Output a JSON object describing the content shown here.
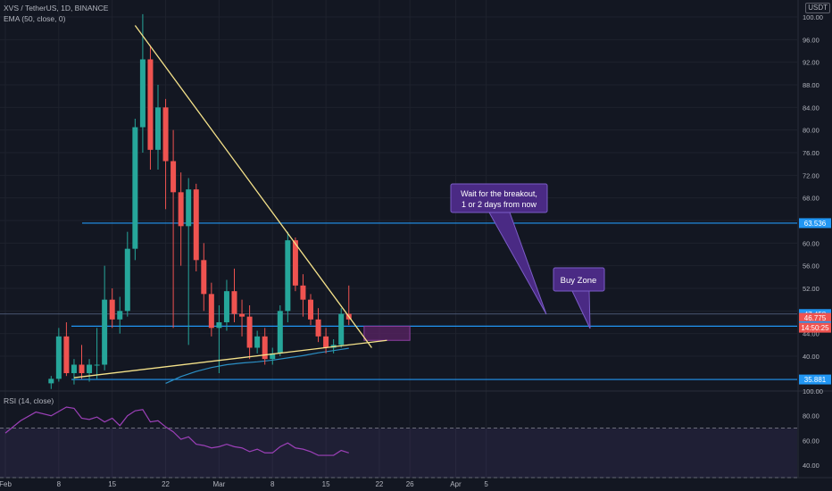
{
  "header": {
    "symbol_line": "XVS / TetherUS, 1D, BINANCE",
    "ema_label": "EMA (50, close, 0)",
    "unit": "USDT",
    "rsi_label": "RSI (14, close)"
  },
  "colors": {
    "background": "#131722",
    "grid": "#1e222d",
    "up": "#26a69a",
    "down": "#ef5350",
    "level_line": "#2196f3",
    "trend_line": "#f5e28a",
    "ema": "#2b8fc5",
    "rsi_line": "#9c40b8",
    "annotation_fill": "#4a2a84",
    "buy_zone_fill": "#5b2466"
  },
  "annotations": {
    "breakout_line1": "Wait for the breakout,",
    "breakout_line2": "1 or 2 days from now",
    "buy_zone": "Buy Zone"
  },
  "chart_data": [
    {
      "type": "candlestick",
      "title": "XVS / TetherUS, 1D, BINANCE",
      "x_axis": {
        "type": "date",
        "ticks": [
          {
            "date": "2021-02-01",
            "label": "Feb"
          },
          {
            "date": "2021-02-08",
            "label": "8"
          },
          {
            "date": "2021-02-15",
            "label": "15"
          },
          {
            "date": "2021-02-22",
            "label": "22"
          },
          {
            "date": "2021-03-01",
            "label": "Mar"
          },
          {
            "date": "2021-03-08",
            "label": "8"
          },
          {
            "date": "2021-03-15",
            "label": "15"
          },
          {
            "date": "2021-03-22",
            "label": "22"
          },
          {
            "date": "2021-03-26",
            "label": "26"
          },
          {
            "date": "2021-04-01",
            "label": "Apr"
          },
          {
            "date": "2021-04-05",
            "label": "5"
          }
        ]
      },
      "y_axis": {
        "range": [
          34,
          100
        ],
        "ticks": [
          40,
          44,
          48,
          52,
          56,
          60,
          64,
          68,
          72,
          76,
          80,
          84,
          88,
          92,
          96,
          100
        ],
        "tick_labels": [
          "40.00",
          "44.00",
          "48.00",
          "52.00",
          "56.00",
          "60.00",
          "64.00",
          "68.00",
          "72.00",
          "76.00",
          "80.00",
          "84.00",
          "88.00",
          "92.00",
          "96.00",
          "100.00"
        ],
        "price_labels": [
          {
            "value": 63.536,
            "label": "63.536",
            "color": "#2196f3"
          },
          {
            "value": 47.458,
            "label": "47.458",
            "color": "#2196f3"
          },
          {
            "value": 46.775,
            "label": "46.775",
            "color": "#ef5350"
          },
          {
            "value": 45.313,
            "label": "45.313",
            "color": "#2196f3"
          },
          {
            "value": 35.881,
            "label": "35.881",
            "color": "#2196f3"
          }
        ],
        "countdown": "14:50:25"
      },
      "candles": [
        {
          "date": "2021-02-07",
          "o": 35.2,
          "h": 36.5,
          "l": 34.2,
          "c": 36.0
        },
        {
          "date": "2021-02-08",
          "o": 36.0,
          "h": 45.0,
          "l": 35.5,
          "c": 43.5
        },
        {
          "date": "2021-02-09",
          "o": 43.5,
          "h": 46.0,
          "l": 36.5,
          "c": 37.0
        },
        {
          "date": "2021-02-10",
          "o": 37.0,
          "h": 39.5,
          "l": 35.0,
          "c": 38.5
        },
        {
          "date": "2021-02-11",
          "o": 38.5,
          "h": 42.0,
          "l": 36.0,
          "c": 37.0
        },
        {
          "date": "2021-02-12",
          "o": 37.0,
          "h": 39.5,
          "l": 35.5,
          "c": 38.5
        },
        {
          "date": "2021-02-13",
          "o": 38.5,
          "h": 45.0,
          "l": 36.0,
          "c": 38.5
        },
        {
          "date": "2021-02-14",
          "o": 38.5,
          "h": 56.0,
          "l": 37.5,
          "c": 50.0
        },
        {
          "date": "2021-02-15",
          "o": 50.0,
          "h": 52.0,
          "l": 45.0,
          "c": 46.5
        },
        {
          "date": "2021-02-16",
          "o": 46.5,
          "h": 50.5,
          "l": 44.0,
          "c": 48.0
        },
        {
          "date": "2021-02-17",
          "o": 48.0,
          "h": 62.0,
          "l": 47.0,
          "c": 59.0
        },
        {
          "date": "2021-02-18",
          "o": 59.0,
          "h": 82.0,
          "l": 57.0,
          "c": 80.5
        },
        {
          "date": "2021-02-19",
          "o": 80.5,
          "h": 100.5,
          "l": 76.0,
          "c": 92.5
        },
        {
          "date": "2021-02-20",
          "o": 92.5,
          "h": 95.0,
          "l": 73.0,
          "c": 76.5
        },
        {
          "date": "2021-02-21",
          "o": 76.5,
          "h": 88.0,
          "l": 73.0,
          "c": 84.0
        },
        {
          "date": "2021-02-22",
          "o": 84.0,
          "h": 85.5,
          "l": 66.0,
          "c": 74.5
        },
        {
          "date": "2021-02-23",
          "o": 74.5,
          "h": 80.0,
          "l": 45.0,
          "c": 69.0
        },
        {
          "date": "2021-02-24",
          "o": 69.0,
          "h": 72.5,
          "l": 56.0,
          "c": 63.0
        },
        {
          "date": "2021-02-25",
          "o": 63.0,
          "h": 71.5,
          "l": 42.0,
          "c": 69.5
        },
        {
          "date": "2021-02-26",
          "o": 69.5,
          "h": 70.5,
          "l": 55.0,
          "c": 57.0
        },
        {
          "date": "2021-02-27",
          "o": 57.0,
          "h": 60.0,
          "l": 48.0,
          "c": 51.0
        },
        {
          "date": "2021-02-28",
          "o": 51.0,
          "h": 53.0,
          "l": 43.5,
          "c": 45.0
        },
        {
          "date": "2021-03-01",
          "o": 45.0,
          "h": 49.0,
          "l": 37.0,
          "c": 46.0
        },
        {
          "date": "2021-03-02",
          "o": 46.0,
          "h": 53.5,
          "l": 44.5,
          "c": 51.5
        },
        {
          "date": "2021-03-03",
          "o": 51.5,
          "h": 55.5,
          "l": 46.0,
          "c": 47.5
        },
        {
          "date": "2021-03-04",
          "o": 47.5,
          "h": 50.0,
          "l": 43.5,
          "c": 47.0
        },
        {
          "date": "2021-03-05",
          "o": 47.0,
          "h": 49.0,
          "l": 39.5,
          "c": 41.5
        },
        {
          "date": "2021-03-06",
          "o": 41.5,
          "h": 44.5,
          "l": 40.5,
          "c": 43.5
        },
        {
          "date": "2021-03-07",
          "o": 43.5,
          "h": 45.0,
          "l": 38.5,
          "c": 39.5
        },
        {
          "date": "2021-03-08",
          "o": 39.5,
          "h": 41.5,
          "l": 38.5,
          "c": 40.5
        },
        {
          "date": "2021-03-09",
          "o": 40.5,
          "h": 49.0,
          "l": 40.0,
          "c": 48.0
        },
        {
          "date": "2021-03-10",
          "o": 48.0,
          "h": 62.0,
          "l": 46.0,
          "c": 60.5
        },
        {
          "date": "2021-03-11",
          "o": 60.5,
          "h": 61.0,
          "l": 51.5,
          "c": 52.5
        },
        {
          "date": "2021-03-12",
          "o": 52.5,
          "h": 54.5,
          "l": 47.0,
          "c": 50.0
        },
        {
          "date": "2021-03-13",
          "o": 50.0,
          "h": 51.0,
          "l": 45.5,
          "c": 46.5
        },
        {
          "date": "2021-03-14",
          "o": 46.5,
          "h": 48.5,
          "l": 42.5,
          "c": 43.5
        },
        {
          "date": "2021-03-15",
          "o": 43.5,
          "h": 45.0,
          "l": 40.5,
          "c": 41.5
        },
        {
          "date": "2021-03-16",
          "o": 41.5,
          "h": 43.0,
          "l": 40.5,
          "c": 42.0
        },
        {
          "date": "2021-03-17",
          "o": 42.0,
          "h": 48.5,
          "l": 41.5,
          "c": 47.5
        },
        {
          "date": "2021-03-18",
          "o": 47.5,
          "h": 52.5,
          "l": 45.5,
          "c": 46.5
        }
      ],
      "ema": [
        {
          "date": "2021-02-22",
          "v": 35.2
        },
        {
          "date": "2021-02-24",
          "v": 36.4
        },
        {
          "date": "2021-02-26",
          "v": 37.3
        },
        {
          "date": "2021-02-28",
          "v": 38.0
        },
        {
          "date": "2021-03-02",
          "v": 38.5
        },
        {
          "date": "2021-03-04",
          "v": 38.8
        },
        {
          "date": "2021-03-06",
          "v": 39.0
        },
        {
          "date": "2021-03-08",
          "v": 39.3
        },
        {
          "date": "2021-03-10",
          "v": 39.7
        },
        {
          "date": "2021-03-12",
          "v": 40.1
        },
        {
          "date": "2021-03-14",
          "v": 40.6
        },
        {
          "date": "2021-03-16",
          "v": 41.0
        },
        {
          "date": "2021-03-18",
          "v": 41.4
        }
      ],
      "horizontal_levels": [
        63.536,
        45.313,
        35.881
      ],
      "trendlines": [
        {
          "from": {
            "date": "2021-02-18",
            "v": 98.5
          },
          "to": {
            "date": "2021-03-21",
            "v": 41.5
          }
        },
        {
          "from": {
            "date": "2021-02-10",
            "v": 36.2
          },
          "to": {
            "date": "2021-03-23",
            "v": 42.8
          }
        }
      ],
      "buy_zone": {
        "from": "2021-03-20",
        "to": "2021-03-26",
        "low": 42.8,
        "high": 45.3
      }
    },
    {
      "type": "line",
      "title": "RSI (14, close)",
      "y_axis": {
        "range": [
          30,
          100
        ],
        "ticks": [
          40,
          60,
          80,
          100
        ],
        "tick_labels": [
          "40.00",
          "60.00",
          "80.00",
          "100.00"
        ]
      },
      "band": {
        "low": 30,
        "high": 70
      },
      "series": [
        {
          "values": [
            {
              "date": "2021-02-01",
              "v": 66
            },
            {
              "date": "2021-02-03",
              "v": 76
            },
            {
              "date": "2021-02-05",
              "v": 83
            },
            {
              "date": "2021-02-07",
              "v": 80
            },
            {
              "date": "2021-02-09",
              "v": 87
            },
            {
              "date": "2021-02-10",
              "v": 86
            },
            {
              "date": "2021-02-11",
              "v": 78
            },
            {
              "date": "2021-02-12",
              "v": 77
            },
            {
              "date": "2021-02-13",
              "v": 79
            },
            {
              "date": "2021-02-14",
              "v": 75
            },
            {
              "date": "2021-02-15",
              "v": 78
            },
            {
              "date": "2021-02-16",
              "v": 72
            },
            {
              "date": "2021-02-17",
              "v": 80
            },
            {
              "date": "2021-02-18",
              "v": 84
            },
            {
              "date": "2021-02-19",
              "v": 85
            },
            {
              "date": "2021-02-20",
              "v": 75
            },
            {
              "date": "2021-02-21",
              "v": 76
            },
            {
              "date": "2021-02-22",
              "v": 71
            },
            {
              "date": "2021-02-23",
              "v": 67
            },
            {
              "date": "2021-02-24",
              "v": 61
            },
            {
              "date": "2021-02-25",
              "v": 63
            },
            {
              "date": "2021-02-26",
              "v": 57
            },
            {
              "date": "2021-02-27",
              "v": 56
            },
            {
              "date": "2021-02-28",
              "v": 54
            },
            {
              "date": "2021-03-01",
              "v": 55
            },
            {
              "date": "2021-03-02",
              "v": 57
            },
            {
              "date": "2021-03-03",
              "v": 55
            },
            {
              "date": "2021-03-04",
              "v": 54
            },
            {
              "date": "2021-03-05",
              "v": 51
            },
            {
              "date": "2021-03-06",
              "v": 53
            },
            {
              "date": "2021-03-07",
              "v": 50
            },
            {
              "date": "2021-03-08",
              "v": 50
            },
            {
              "date": "2021-03-09",
              "v": 55
            },
            {
              "date": "2021-03-10",
              "v": 58
            },
            {
              "date": "2021-03-11",
              "v": 54
            },
            {
              "date": "2021-03-12",
              "v": 53
            },
            {
              "date": "2021-03-13",
              "v": 51
            },
            {
              "date": "2021-03-14",
              "v": 48
            },
            {
              "date": "2021-03-15",
              "v": 48
            },
            {
              "date": "2021-03-16",
              "v": 48
            },
            {
              "date": "2021-03-17",
              "v": 52
            },
            {
              "date": "2021-03-18",
              "v": 50
            }
          ]
        }
      ]
    }
  ]
}
